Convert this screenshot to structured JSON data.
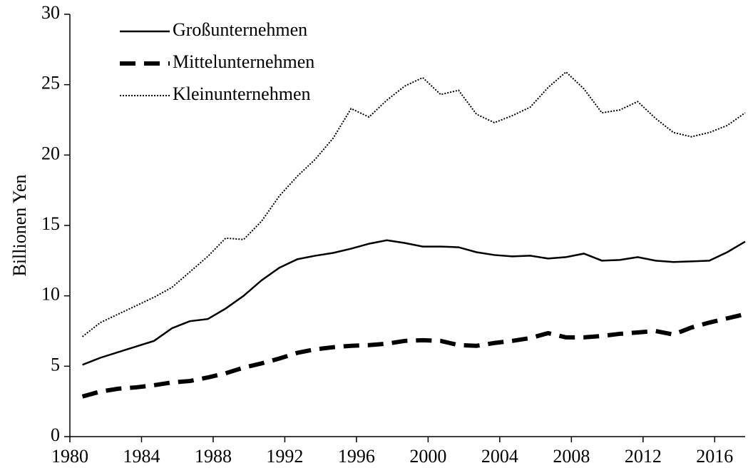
{
  "chart_data": {
    "type": "line",
    "y_label": "Billionen Yen",
    "x": [
      1980.7,
      1981.7,
      1982.7,
      1983.7,
      1984.7,
      1985.7,
      1986.7,
      1987.7,
      1988.7,
      1989.7,
      1990.7,
      1991.7,
      1992.7,
      1993.7,
      1994.7,
      1995.7,
      1996.7,
      1997.7,
      1998.7,
      1999.7,
      2000.7,
      2001.7,
      2002.7,
      2003.7,
      2004.7,
      2005.7,
      2006.7,
      2007.7,
      2008.7,
      2009.7,
      2010.7,
      2011.7,
      2012.7,
      2013.7,
      2014.7,
      2015.7,
      2016.7,
      2017.7
    ],
    "series": [
      {
        "name": "Großunternehmen",
        "color": "#000000",
        "dash": "solid",
        "width": 2.5,
        "values": [
          5.1,
          5.6,
          6.0,
          6.4,
          6.8,
          7.7,
          8.2,
          8.35,
          9.1,
          10.0,
          11.1,
          12.0,
          12.6,
          12.85,
          13.05,
          13.35,
          13.7,
          13.95,
          13.75,
          13.5,
          13.5,
          13.45,
          13.1,
          12.9,
          12.8,
          12.85,
          12.65,
          12.75,
          13.0,
          12.5,
          12.55,
          12.75,
          12.5,
          12.4,
          12.45,
          12.5,
          13.1,
          13.85
        ]
      },
      {
        "name": "Mittelunternehmen",
        "color": "#000000",
        "dash": "dashed",
        "width": 6,
        "values": [
          2.85,
          3.2,
          3.4,
          3.5,
          3.65,
          3.85,
          3.95,
          4.2,
          4.5,
          4.9,
          5.2,
          5.55,
          5.95,
          6.2,
          6.35,
          6.45,
          6.5,
          6.6,
          6.8,
          6.85,
          6.8,
          6.5,
          6.45,
          6.65,
          6.8,
          7.0,
          7.35,
          7.05,
          7.05,
          7.15,
          7.3,
          7.4,
          7.5,
          7.25,
          7.75,
          8.1,
          8.4,
          8.7
        ]
      },
      {
        "name": "Kleinunternehmen",
        "color": "#000000",
        "dash": "dotted",
        "width": 2,
        "values": [
          7.1,
          8.1,
          8.7,
          9.3,
          9.9,
          10.6,
          11.7,
          12.8,
          14.1,
          14.0,
          15.3,
          17.1,
          18.5,
          19.7,
          21.2,
          23.3,
          22.7,
          23.9,
          24.9,
          25.5,
          24.3,
          24.6,
          22.9,
          22.3,
          22.8,
          23.4,
          24.8,
          25.9,
          24.7,
          23.0,
          23.2,
          23.8,
          22.6,
          21.6,
          21.3,
          21.6,
          22.1,
          23.0
        ]
      }
    ],
    "xlim": [
      1980,
      2017.7
    ],
    "xticks": [
      1980,
      1984,
      1988,
      1992,
      1996,
      2000,
      2004,
      2008,
      2012,
      2016
    ],
    "ylim": [
      0,
      30
    ],
    "yticks": [
      0,
      5,
      10,
      15,
      20,
      25,
      30
    ],
    "grid": false,
    "legend": "top-left"
  }
}
